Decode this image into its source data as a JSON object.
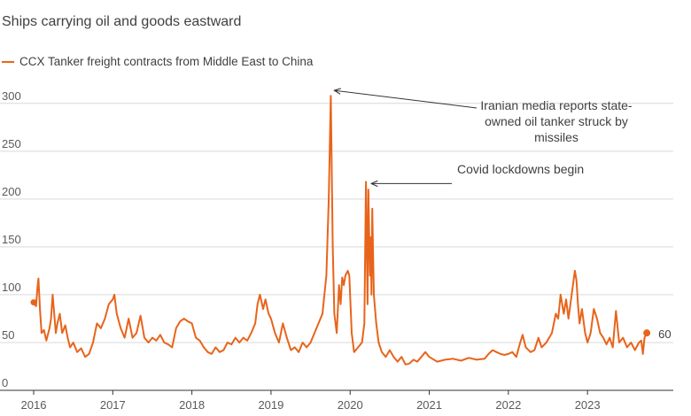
{
  "subtitle": "Ships carrying oil and goods eastward",
  "colors": {
    "series": "#e8641b",
    "grid": "#d9d9d9",
    "axis": "#333333",
    "annotation": "#333333"
  },
  "chart_data": {
    "type": "line",
    "legend_position": "top-left",
    "grid": true,
    "ylim": [
      0,
      310
    ],
    "yticks": [
      0,
      50,
      100,
      150,
      200,
      250,
      300
    ],
    "xlim": [
      2016.0,
      2023.95
    ],
    "xticks": [
      2016,
      2017,
      2018,
      2019,
      2020,
      2021,
      2022,
      2023
    ],
    "series": [
      {
        "name": "CCX Tanker freight contracts from Middle East to China",
        "points": [
          [
            2016.0,
            92
          ],
          [
            2016.03,
            88
          ],
          [
            2016.05,
            110
          ],
          [
            2016.06,
            117
          ],
          [
            2016.08,
            85
          ],
          [
            2016.1,
            60
          ],
          [
            2016.13,
            63
          ],
          [
            2016.16,
            52
          ],
          [
            2016.2,
            65
          ],
          [
            2016.22,
            75
          ],
          [
            2016.24,
            100
          ],
          [
            2016.26,
            80
          ],
          [
            2016.28,
            60
          ],
          [
            2016.3,
            70
          ],
          [
            2016.33,
            80
          ],
          [
            2016.36,
            60
          ],
          [
            2016.4,
            68
          ],
          [
            2016.43,
            55
          ],
          [
            2016.46,
            45
          ],
          [
            2016.5,
            50
          ],
          [
            2016.55,
            40
          ],
          [
            2016.6,
            44
          ],
          [
            2016.65,
            35
          ],
          [
            2016.7,
            38
          ],
          [
            2016.75,
            50
          ],
          [
            2016.8,
            70
          ],
          [
            2016.85,
            65
          ],
          [
            2016.9,
            75
          ],
          [
            2016.95,
            90
          ],
          [
            2017.0,
            95
          ],
          [
            2017.02,
            100
          ],
          [
            2017.05,
            80
          ],
          [
            2017.1,
            65
          ],
          [
            2017.15,
            55
          ],
          [
            2017.2,
            75
          ],
          [
            2017.25,
            55
          ],
          [
            2017.3,
            60
          ],
          [
            2017.35,
            78
          ],
          [
            2017.4,
            55
          ],
          [
            2017.45,
            50
          ],
          [
            2017.5,
            55
          ],
          [
            2017.55,
            52
          ],
          [
            2017.6,
            58
          ],
          [
            2017.65,
            50
          ],
          [
            2017.7,
            48
          ],
          [
            2017.75,
            45
          ],
          [
            2017.8,
            65
          ],
          [
            2017.85,
            72
          ],
          [
            2017.9,
            75
          ],
          [
            2017.95,
            72
          ],
          [
            2018.0,
            70
          ],
          [
            2018.05,
            55
          ],
          [
            2018.1,
            52
          ],
          [
            2018.15,
            45
          ],
          [
            2018.2,
            40
          ],
          [
            2018.25,
            38
          ],
          [
            2018.3,
            45
          ],
          [
            2018.35,
            40
          ],
          [
            2018.4,
            42
          ],
          [
            2018.45,
            50
          ],
          [
            2018.5,
            48
          ],
          [
            2018.55,
            55
          ],
          [
            2018.6,
            50
          ],
          [
            2018.65,
            55
          ],
          [
            2018.7,
            52
          ],
          [
            2018.75,
            60
          ],
          [
            2018.8,
            70
          ],
          [
            2018.83,
            90
          ],
          [
            2018.86,
            100
          ],
          [
            2018.9,
            85
          ],
          [
            2018.93,
            95
          ],
          [
            2018.97,
            80
          ],
          [
            2019.0,
            75
          ],
          [
            2019.05,
            60
          ],
          [
            2019.1,
            50
          ],
          [
            2019.15,
            70
          ],
          [
            2019.2,
            55
          ],
          [
            2019.25,
            42
          ],
          [
            2019.3,
            45
          ],
          [
            2019.35,
            40
          ],
          [
            2019.4,
            50
          ],
          [
            2019.45,
            45
          ],
          [
            2019.5,
            50
          ],
          [
            2019.55,
            60
          ],
          [
            2019.6,
            70
          ],
          [
            2019.65,
            80
          ],
          [
            2019.7,
            120
          ],
          [
            2019.73,
            200
          ],
          [
            2019.755,
            308
          ],
          [
            2019.78,
            150
          ],
          [
            2019.8,
            80
          ],
          [
            2019.83,
            60
          ],
          [
            2019.86,
            110
          ],
          [
            2019.88,
            90
          ],
          [
            2019.9,
            118
          ],
          [
            2019.92,
            110
          ],
          [
            2019.94,
            120
          ],
          [
            2019.97,
            125
          ],
          [
            2019.99,
            120
          ],
          [
            2020.02,
            60
          ],
          [
            2020.05,
            40
          ],
          [
            2020.1,
            45
          ],
          [
            2020.15,
            50
          ],
          [
            2020.18,
            70
          ],
          [
            2020.2,
            218
          ],
          [
            2020.21,
            150
          ],
          [
            2020.22,
            90
          ],
          [
            2020.23,
            210
          ],
          [
            2020.25,
            120
          ],
          [
            2020.26,
            160
          ],
          [
            2020.27,
            100
          ],
          [
            2020.28,
            190
          ],
          [
            2020.3,
            100
          ],
          [
            2020.33,
            70
          ],
          [
            2020.36,
            50
          ],
          [
            2020.4,
            40
          ],
          [
            2020.45,
            35
          ],
          [
            2020.5,
            42
          ],
          [
            2020.55,
            35
          ],
          [
            2020.6,
            30
          ],
          [
            2020.65,
            35
          ],
          [
            2020.7,
            27
          ],
          [
            2020.75,
            28
          ],
          [
            2020.8,
            32
          ],
          [
            2020.85,
            30
          ],
          [
            2020.9,
            35
          ],
          [
            2020.95,
            40
          ],
          [
            2021.0,
            35
          ],
          [
            2021.1,
            30
          ],
          [
            2021.2,
            32
          ],
          [
            2021.3,
            33
          ],
          [
            2021.4,
            31
          ],
          [
            2021.5,
            34
          ],
          [
            2021.6,
            32
          ],
          [
            2021.7,
            33
          ],
          [
            2021.75,
            38
          ],
          [
            2021.8,
            42
          ],
          [
            2021.85,
            40
          ],
          [
            2021.9,
            38
          ],
          [
            2021.95,
            37
          ],
          [
            2022.0,
            38
          ],
          [
            2022.05,
            40
          ],
          [
            2022.1,
            35
          ],
          [
            2022.15,
            50
          ],
          [
            2022.18,
            58
          ],
          [
            2022.22,
            45
          ],
          [
            2022.28,
            40
          ],
          [
            2022.33,
            42
          ],
          [
            2022.38,
            55
          ],
          [
            2022.42,
            45
          ],
          [
            2022.48,
            50
          ],
          [
            2022.55,
            60
          ],
          [
            2022.6,
            80
          ],
          [
            2022.63,
            75
          ],
          [
            2022.66,
            100
          ],
          [
            2022.7,
            80
          ],
          [
            2022.73,
            95
          ],
          [
            2022.76,
            75
          ],
          [
            2022.8,
            100
          ],
          [
            2022.84,
            125
          ],
          [
            2022.86,
            115
          ],
          [
            2022.88,
            90
          ],
          [
            2022.9,
            70
          ],
          [
            2022.93,
            85
          ],
          [
            2022.97,
            60
          ],
          [
            2023.0,
            50
          ],
          [
            2023.04,
            60
          ],
          [
            2023.08,
            85
          ],
          [
            2023.12,
            75
          ],
          [
            2023.16,
            60
          ],
          [
            2023.2,
            55
          ],
          [
            2023.24,
            48
          ],
          [
            2023.28,
            55
          ],
          [
            2023.32,
            45
          ],
          [
            2023.36,
            83
          ],
          [
            2023.4,
            50
          ],
          [
            2023.45,
            55
          ],
          [
            2023.5,
            45
          ],
          [
            2023.55,
            50
          ],
          [
            2023.6,
            42
          ],
          [
            2023.65,
            50
          ],
          [
            2023.68,
            52
          ],
          [
            2023.7,
            38
          ],
          [
            2023.72,
            55
          ],
          [
            2023.75,
            60
          ]
        ]
      }
    ],
    "end_point": {
      "x": 2023.75,
      "y": 60,
      "label": "60"
    },
    "start_point": {
      "x": 2016.0,
      "y": 92
    },
    "annotations": [
      {
        "lines": [
          "Iranian media reports state-",
          "owned oil tanker struck by",
          "missiles"
        ],
        "x": 2019.755,
        "y": 308
      },
      {
        "lines": [
          "Covid lockdowns begin"
        ],
        "x": 2020.2,
        "y": 218
      }
    ]
  }
}
